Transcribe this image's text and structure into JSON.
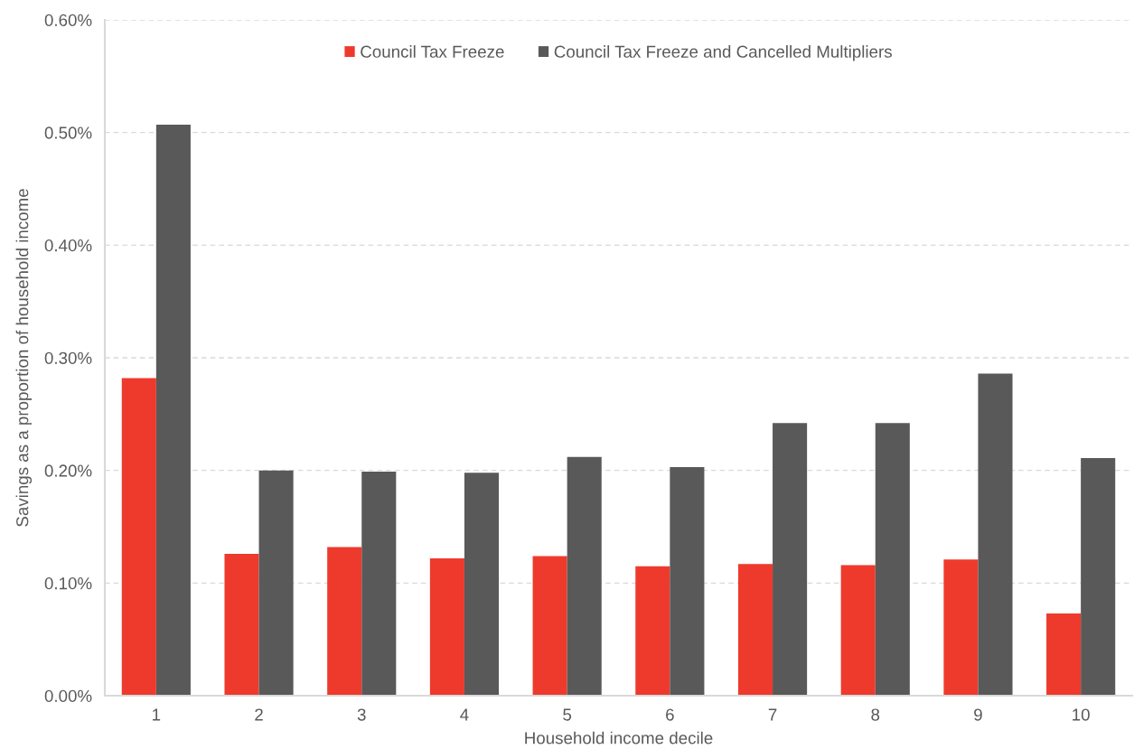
{
  "chart_data": {
    "type": "bar",
    "xlabel": "Household income decile",
    "ylabel": "Savings as a proportion of household income",
    "categories": [
      "1",
      "2",
      "3",
      "4",
      "5",
      "6",
      "7",
      "8",
      "9",
      "10"
    ],
    "series": [
      {
        "name": "Council Tax Freeze",
        "color": "#ee3a2c",
        "values": [
          0.282,
          0.126,
          0.132,
          0.122,
          0.124,
          0.115,
          0.117,
          0.116,
          0.121,
          0.073
        ]
      },
      {
        "name": "Council Tax Freeze and Cancelled Multipliers",
        "color": "#595959",
        "values": [
          0.507,
          0.2,
          0.199,
          0.198,
          0.212,
          0.203,
          0.242,
          0.242,
          0.286,
          0.211
        ]
      }
    ],
    "ylim": [
      0,
      0.6
    ],
    "yticks": [
      {
        "value": 0,
        "label": "0.00%"
      },
      {
        "value": 0.1,
        "label": "0.10%"
      },
      {
        "value": 0.2,
        "label": "0.20%"
      },
      {
        "value": 0.3,
        "label": "0.30%"
      },
      {
        "value": 0.4,
        "label": "0.40%"
      },
      {
        "value": 0.5,
        "label": "0.50%"
      },
      {
        "value": 0.6,
        "label": "0.60%"
      }
    ],
    "grid": "y",
    "legend": "top"
  }
}
